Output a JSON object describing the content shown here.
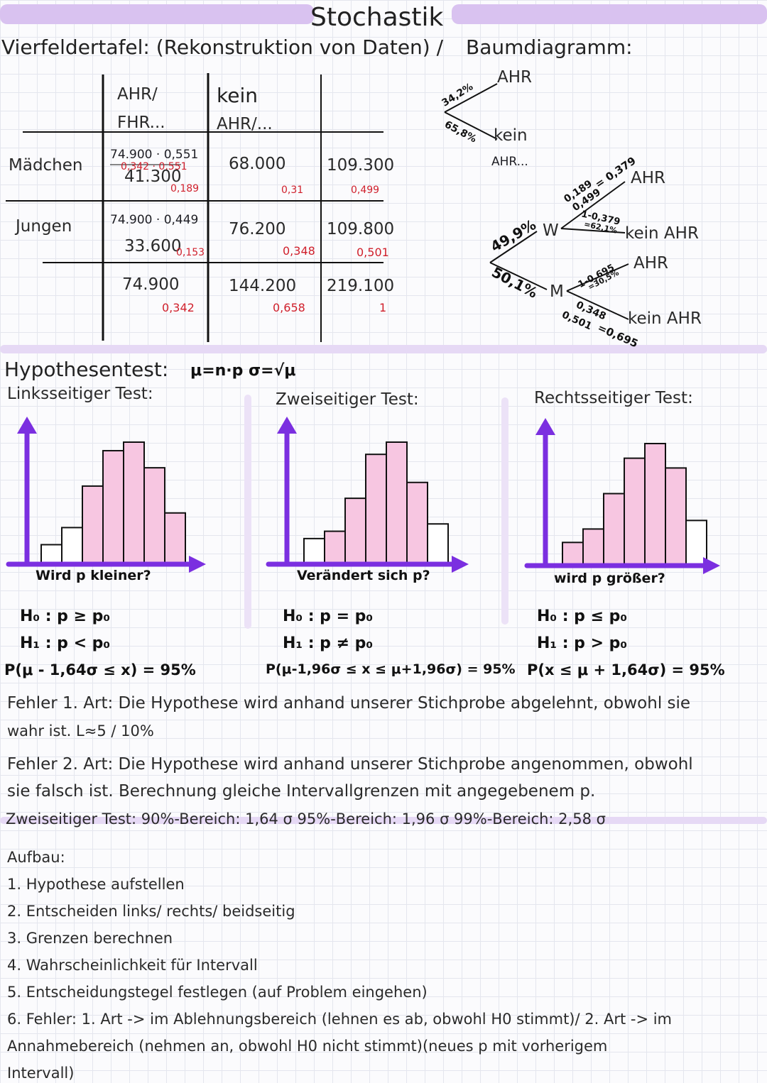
{
  "title": "Stochastik",
  "section1": {
    "heading": "Vierfeldertafel: (Rekonstruktion von Daten) /",
    "heading2": "Baumdiagramm:"
  },
  "table": {
    "col1_line1": "AHR/",
    "col1_line2": "FHR...",
    "col2_line1": "kein",
    "col2_line2": "AHR/...",
    "row1_label": "Mädchen",
    "row2_label": "Jungen",
    "r1c1_calc": "74.900 · 0,551",
    "r1c1_note": "0,342 · 0,551",
    "r1c1_value": "41.300",
    "r1c1_frac": "0,189",
    "r1c2_value": "68.000",
    "r1c2_frac": "0,31",
    "r1c3_value": "109.300",
    "r1c3_frac": "0,499",
    "r2c1_calc": "74.900 · 0,449",
    "r2c1_value": "33.600",
    "r2c1_frac": "0,153",
    "r2c2_value": "76.200",
    "r2c2_frac": "0,348",
    "r2c3_value": "109.800",
    "r2c3_frac": "0,501",
    "r3c1_value": "74.900",
    "r3c1_frac": "0,342",
    "r3c2_value": "144.200",
    "r3c2_frac": "0,658",
    "r3c3_value": "219.100",
    "r3c3_frac": "1"
  },
  "tree": {
    "top_ahr": "AHR",
    "top_ahr_pct": "34,2%",
    "top_kein_pct": "65,8%",
    "top_kein_line1": "kein",
    "top_kein_line2": "AHR...",
    "w_pct": "49,9%",
    "w_label": "W",
    "m_pct": "50,1%",
    "m_label": "M",
    "w_ahr_calc1": "0,189",
    "w_ahr_calc2": "0,499",
    "w_ahr_res": "= 0,379",
    "w_ahr": "AHR",
    "w_kein_calc": "1-0,379",
    "w_kein_res": "=62,1%",
    "w_kein": "kein AHR",
    "m_ahr_calc": "1-0,695",
    "m_ahr_res": "=30,5%",
    "m_ahr": "AHR",
    "m_kein_calc1": "0,348",
    "m_kein_calc2": "0,501",
    "m_kein_res": "=0,695",
    "m_kein": "kein AHR"
  },
  "hypo": {
    "heading": "Hypothesentest:",
    "formula": "μ=n·p   σ=√μ",
    "left_title": "Linksseitiger Test:",
    "mid_title": "Zweiseitiger Test:",
    "right_title": "Rechtsseitiger Test:",
    "left_caption": "Wird p kleiner?",
    "mid_caption": "Verändert sich p?",
    "right_caption": "wird p größer?",
    "left_h0": "H₀ : p ≥ p₀",
    "left_h1": "H₁ : p < p₀",
    "mid_h0": "H₀ : p = p₀",
    "mid_h1": "H₁ : p ≠ p₀",
    "right_h0": "H₀ : p ≤ p₀",
    "right_h1": "H₁ : p > p₀",
    "left_prob": "P(μ - 1,64σ ≤ x) = 95%",
    "mid_prob": "P(μ-1,96σ ≤ x ≤ μ+1,96σ) = 95%",
    "right_prob": "P(x ≤ μ + 1,64σ) = 95%"
  },
  "charts": {
    "bar_color": "#f7c6e1",
    "axis_color": "#7b2fe0",
    "left": [
      {
        "h": 0.16,
        "f": false
      },
      {
        "h": 0.3,
        "f": false
      },
      {
        "h": 0.64,
        "f": true
      },
      {
        "h": 0.93,
        "f": true
      },
      {
        "h": 1.0,
        "f": true
      },
      {
        "h": 0.79,
        "f": true
      },
      {
        "h": 0.42,
        "f": true
      }
    ],
    "mid": [
      {
        "h": 0.21,
        "f": false
      },
      {
        "h": 0.27,
        "f": true
      },
      {
        "h": 0.54,
        "f": true
      },
      {
        "h": 0.9,
        "f": true
      },
      {
        "h": 1.0,
        "f": true
      },
      {
        "h": 0.67,
        "f": true
      },
      {
        "h": 0.33,
        "f": false
      }
    ],
    "right": [
      {
        "h": 0.19,
        "f": true
      },
      {
        "h": 0.3,
        "f": true
      },
      {
        "h": 0.59,
        "f": true
      },
      {
        "h": 0.88,
        "f": true
      },
      {
        "h": 1.0,
        "f": true
      },
      {
        "h": 0.8,
        "f": true
      },
      {
        "h": 0.37,
        "f": false
      }
    ]
  },
  "errors": {
    "e1": "Fehler 1. Art: Die Hypothese wird anhand unserer Stichprobe abgelehnt, obwohl sie",
    "e1b": "wahr ist. L≈5 / 10%",
    "e2": "Fehler 2. Art: Die Hypothese wird anhand unserer Stichprobe angenommen, obwohl",
    "e2b": "sie falsch ist. Berechnung gleiche Intervallgrenzen mit angegebenem p.",
    "e3": "Zweiseitiger Test:  90%-Bereich: 1,64 σ  95%-Bereich: 1,96 σ  99%-Bereich: 2,58 σ"
  },
  "aufbau": {
    "heading": "Aufbau:",
    "s1": "1. Hypothese aufstellen",
    "s2": "2. Entscheiden links/ rechts/ beidseitig",
    "s3": "3. Grenzen berechnen",
    "s4": "4. Wahrscheinlichkeit für Intervall",
    "s5": "5. Entscheidungstegel festlegen (auf Problem eingehen)",
    "s6": "6. Fehler: 1. Art -> im Ablehnungsbereich (lehnen es ab, obwohl H0 stimmt)/ 2. Art -> im",
    "s6b": "Annahmebereich (nehmen an, obwohl H0 nicht stimmt)(neues p mit vorherigem",
    "s6c": "Intervall)"
  }
}
